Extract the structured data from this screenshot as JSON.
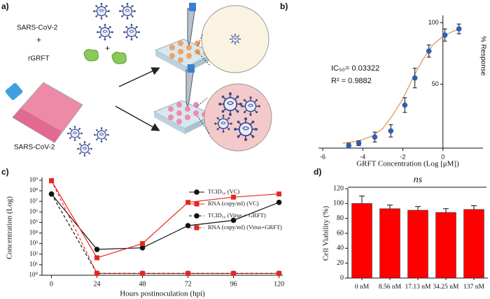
{
  "chart_data": [
    {
      "type": "illustration",
      "panel_label": "a)",
      "labels": [
        "SARS-CoV-2",
        "+",
        "+",
        "rGRFT",
        "SARS-CoV-2"
      ]
    },
    {
      "type": "scatter",
      "panel_label": "b)",
      "x_label": "GRFT Concentration (Log [μM])",
      "y_label": "% Response",
      "annotations": [
        "IC₅₀= 0.03322",
        "R² = 0.9882"
      ],
      "xlim": [
        -6,
        2
      ],
      "xticks": [
        -6,
        -4,
        -2,
        0
      ],
      "ylim": [
        -2,
        106
      ],
      "yticks": [
        50,
        100
      ],
      "color": "#2e5fb0",
      "x": [
        -4.7,
        -4.2,
        -3.4,
        -2.6,
        -1.9,
        -1.4,
        -0.7,
        0.1,
        0.8
      ],
      "values": [
        0,
        2,
        7,
        12,
        33,
        55,
        77,
        90,
        95
      ],
      "errors": [
        2,
        2,
        4,
        5,
        6,
        8,
        5,
        5,
        4
      ],
      "fit": {
        "color": "#e0a060",
        "x": [
          -5,
          -4.5,
          -4,
          -3.5,
          -3,
          -2.5,
          -2,
          -1.5,
          -1,
          -0.5,
          0,
          0.5,
          0.9
        ],
        "values": [
          2,
          3,
          5,
          8,
          14,
          25,
          38,
          55,
          70,
          82,
          89,
          93,
          95
        ]
      }
    },
    {
      "type": "line",
      "panel_label": "c)",
      "x_label": "Hours postinoculation (hpi)",
      "y_label": "Concentration (Log)",
      "log_y": true,
      "xlim": [
        -5,
        122
      ],
      "xticks": [
        0,
        24,
        48,
        72,
        96,
        120
      ],
      "ylim": [
        1,
        1000000000
      ],
      "yticks": [
        {
          "value": 1,
          "label": "10⁰"
        },
        {
          "value": 10,
          "label": "10¹"
        },
        {
          "value": 100,
          "label": "10²"
        },
        {
          "value": 1000,
          "label": "10³"
        },
        {
          "value": 10000,
          "label": "10⁴"
        },
        {
          "value": 100000,
          "label": "10⁵"
        },
        {
          "value": 1000000,
          "label": "10⁶"
        },
        {
          "value": 10000000,
          "label": "10⁷"
        },
        {
          "value": 100000000,
          "label": "10⁸"
        },
        {
          "value": 1000000000,
          "label": "10⁹"
        }
      ],
      "x": [
        0,
        24,
        48,
        72,
        96,
        120
      ],
      "series": [
        {
          "name": "TCID₅₀ (VC)",
          "color": "#111111",
          "marker": "circle",
          "dashed": false,
          "values": [
            50000000,
            280,
            400,
            50000,
            160000,
            8000000
          ]
        },
        {
          "name": "RNA (copy/ml) (VC)",
          "color": "#e8261c",
          "marker": "square",
          "dashed": false,
          "values": [
            900000000,
            45,
            1000,
            8000000,
            25000000,
            50000000
          ]
        },
        {
          "name": "TCID₅₀ (Virus + GRFT)",
          "color": "#111111",
          "marker": "circle",
          "dashed": true,
          "values": [
            50000000,
            1.5,
            1.5,
            1.5,
            1.5,
            1.5
          ]
        },
        {
          "name": "RNA (copy/ml) (Virus+GRFT)",
          "color": "#e8261c",
          "marker": "square",
          "dashed": true,
          "values": [
            900000000,
            1.5,
            1.5,
            1.5,
            1.5,
            1.5
          ]
        }
      ]
    },
    {
      "type": "bar",
      "panel_label": "d)",
      "y_label": "Cell Viability (%)",
      "annotation": "ns",
      "categories": [
        "0 nM",
        "8.56 nM",
        "17.13 nM",
        "34.25 nM",
        "137 nM"
      ],
      "values": [
        100,
        93,
        91,
        88,
        92
      ],
      "errors": [
        10,
        5,
        5,
        5,
        5
      ],
      "color": "#ff0000",
      "ylim": [
        0,
        120
      ],
      "yticks": [
        0,
        20,
        40,
        60,
        80,
        100,
        120
      ]
    }
  ]
}
